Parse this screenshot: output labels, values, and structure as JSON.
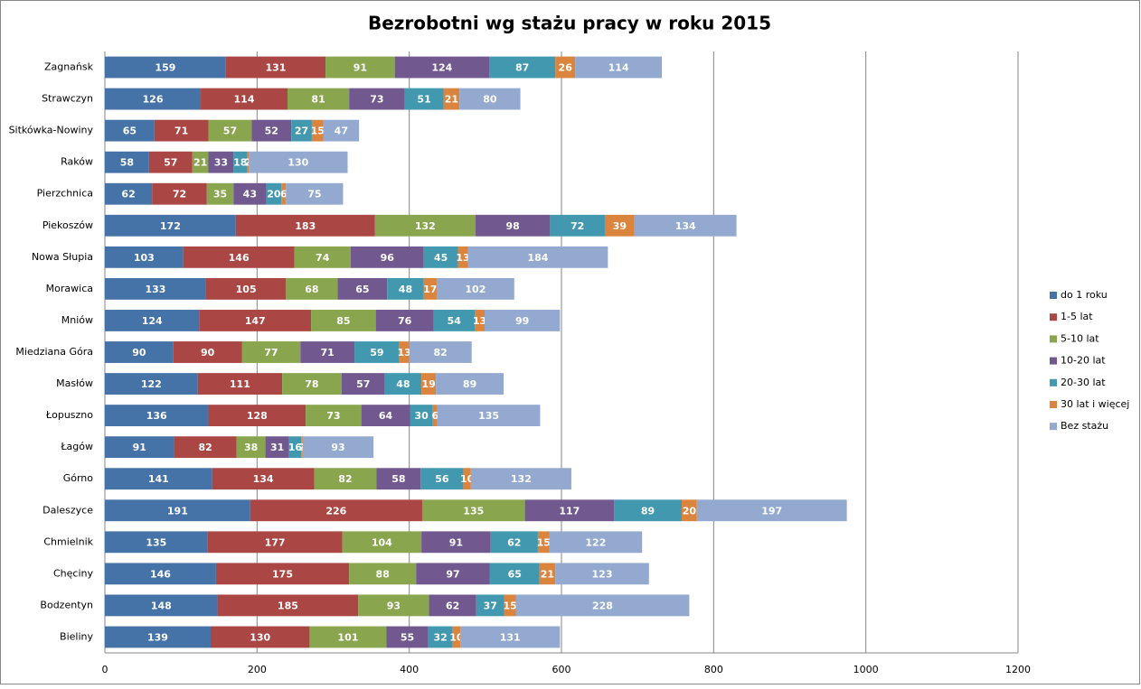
{
  "chart_data": {
    "type": "stacked-bar-horizontal",
    "title": "Bezrobotni wg stażu pracy w roku 2015",
    "categories": [
      "Zagnańsk",
      "Strawczyn",
      "Sitkówka-Nowiny",
      "Raków",
      "Pierzchnica",
      "Piekoszów",
      "Nowa Słupia",
      "Morawica",
      "Mniów",
      "Miedziana Góra",
      "Masłów",
      "Łopuszno",
      "Łagów",
      "Górno",
      "Daleszyce",
      "Chmielnik",
      "Chęciny",
      "Bodzentyn",
      "Bieliny"
    ],
    "series": [
      {
        "name": "do 1 roku",
        "color": "#4572a7",
        "values": [
          159,
          126,
          65,
          58,
          62,
          172,
          103,
          133,
          124,
          90,
          122,
          136,
          91,
          141,
          191,
          135,
          146,
          148,
          139
        ]
      },
      {
        "name": "1-5 lat",
        "color": "#aa4643",
        "values": [
          131,
          114,
          71,
          57,
          72,
          183,
          146,
          105,
          147,
          90,
          111,
          128,
          82,
          134,
          226,
          177,
          175,
          185,
          130
        ]
      },
      {
        "name": "5-10 lat",
        "color": "#89a54e",
        "values": [
          91,
          81,
          57,
          21,
          35,
          132,
          74,
          68,
          85,
          77,
          78,
          73,
          38,
          82,
          135,
          104,
          88,
          93,
          101
        ]
      },
      {
        "name": "10-20 lat",
        "color": "#71588f",
        "values": [
          124,
          73,
          52,
          33,
          43,
          98,
          96,
          65,
          76,
          71,
          57,
          64,
          31,
          58,
          117,
          91,
          97,
          62,
          55
        ]
      },
      {
        "name": "20-30 lat",
        "color": "#4198af",
        "values": [
          87,
          51,
          27,
          18,
          20,
          72,
          45,
          48,
          54,
          59,
          48,
          30,
          16,
          56,
          89,
          62,
          65,
          37,
          32
        ]
      },
      {
        "name": "30 lat i więcej",
        "color": "#db843d",
        "values": [
          26,
          21,
          15,
          2,
          6,
          39,
          13,
          17,
          13,
          13,
          19,
          6,
          2,
          10,
          20,
          15,
          21,
          15,
          10
        ]
      },
      {
        "name": "Bez stażu",
        "color": "#93a9cf",
        "values": [
          114,
          80,
          47,
          130,
          75,
          134,
          184,
          102,
          99,
          82,
          89,
          135,
          93,
          132,
          197,
          122,
          123,
          228,
          131
        ]
      }
    ],
    "xlim": [
      0,
      1200
    ],
    "xticks": [
      0,
      200,
      400,
      600,
      800,
      1000,
      1200
    ],
    "grid": true,
    "legend": "right"
  }
}
